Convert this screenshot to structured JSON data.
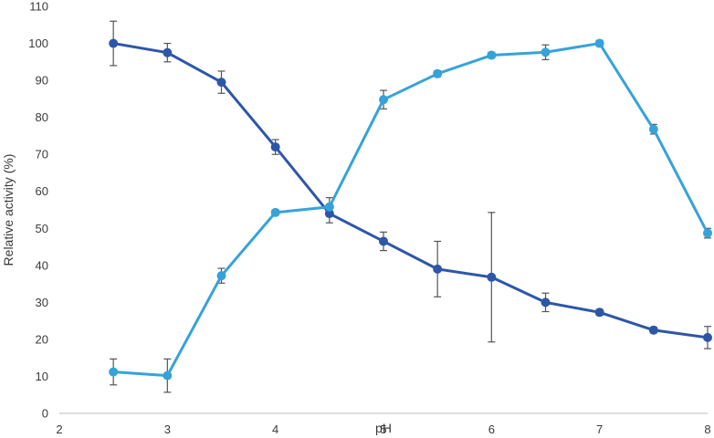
{
  "chart_data": {
    "type": "line",
    "title": "",
    "xlabel": "pH",
    "ylabel": "Relative activity (%)",
    "xlim": [
      2,
      8
    ],
    "ylim": [
      0,
      110
    ],
    "x_ticks": [
      2,
      3,
      4,
      5,
      6,
      7,
      8
    ],
    "y_ticks": [
      0,
      10,
      20,
      30,
      40,
      50,
      60,
      70,
      80,
      90,
      100,
      110
    ],
    "grid": false,
    "legend": "none",
    "series": [
      {
        "color": "#2e56a8",
        "x": [
          2.5,
          3,
          3.5,
          4,
          4.5,
          5,
          5.5,
          6,
          6.5,
          7,
          7.5,
          8
        ],
        "y": [
          100,
          97.5,
          89.5,
          72,
          54,
          46.5,
          39,
          36.8,
          30,
          27.3,
          22.5,
          20.5
        ],
        "error": [
          6,
          2.5,
          3,
          2,
          2.5,
          2.5,
          7.5,
          17.5,
          2.5,
          0.8,
          0.8,
          3
        ]
      },
      {
        "color": "#35a3da",
        "x": [
          2.5,
          3,
          3.5,
          4,
          4.5,
          5,
          5.5,
          6,
          6.5,
          7,
          7.5,
          8
        ],
        "y": [
          11.2,
          10.2,
          37.2,
          54.3,
          55.8,
          84.8,
          91.8,
          96.8,
          97.6,
          100,
          76.8,
          48.7
        ],
        "error": [
          3.5,
          4.5,
          2,
          0.7,
          2.5,
          2.5,
          0.8,
          0.8,
          2,
          0.8,
          1.3,
          1.3
        ]
      }
    ]
  }
}
